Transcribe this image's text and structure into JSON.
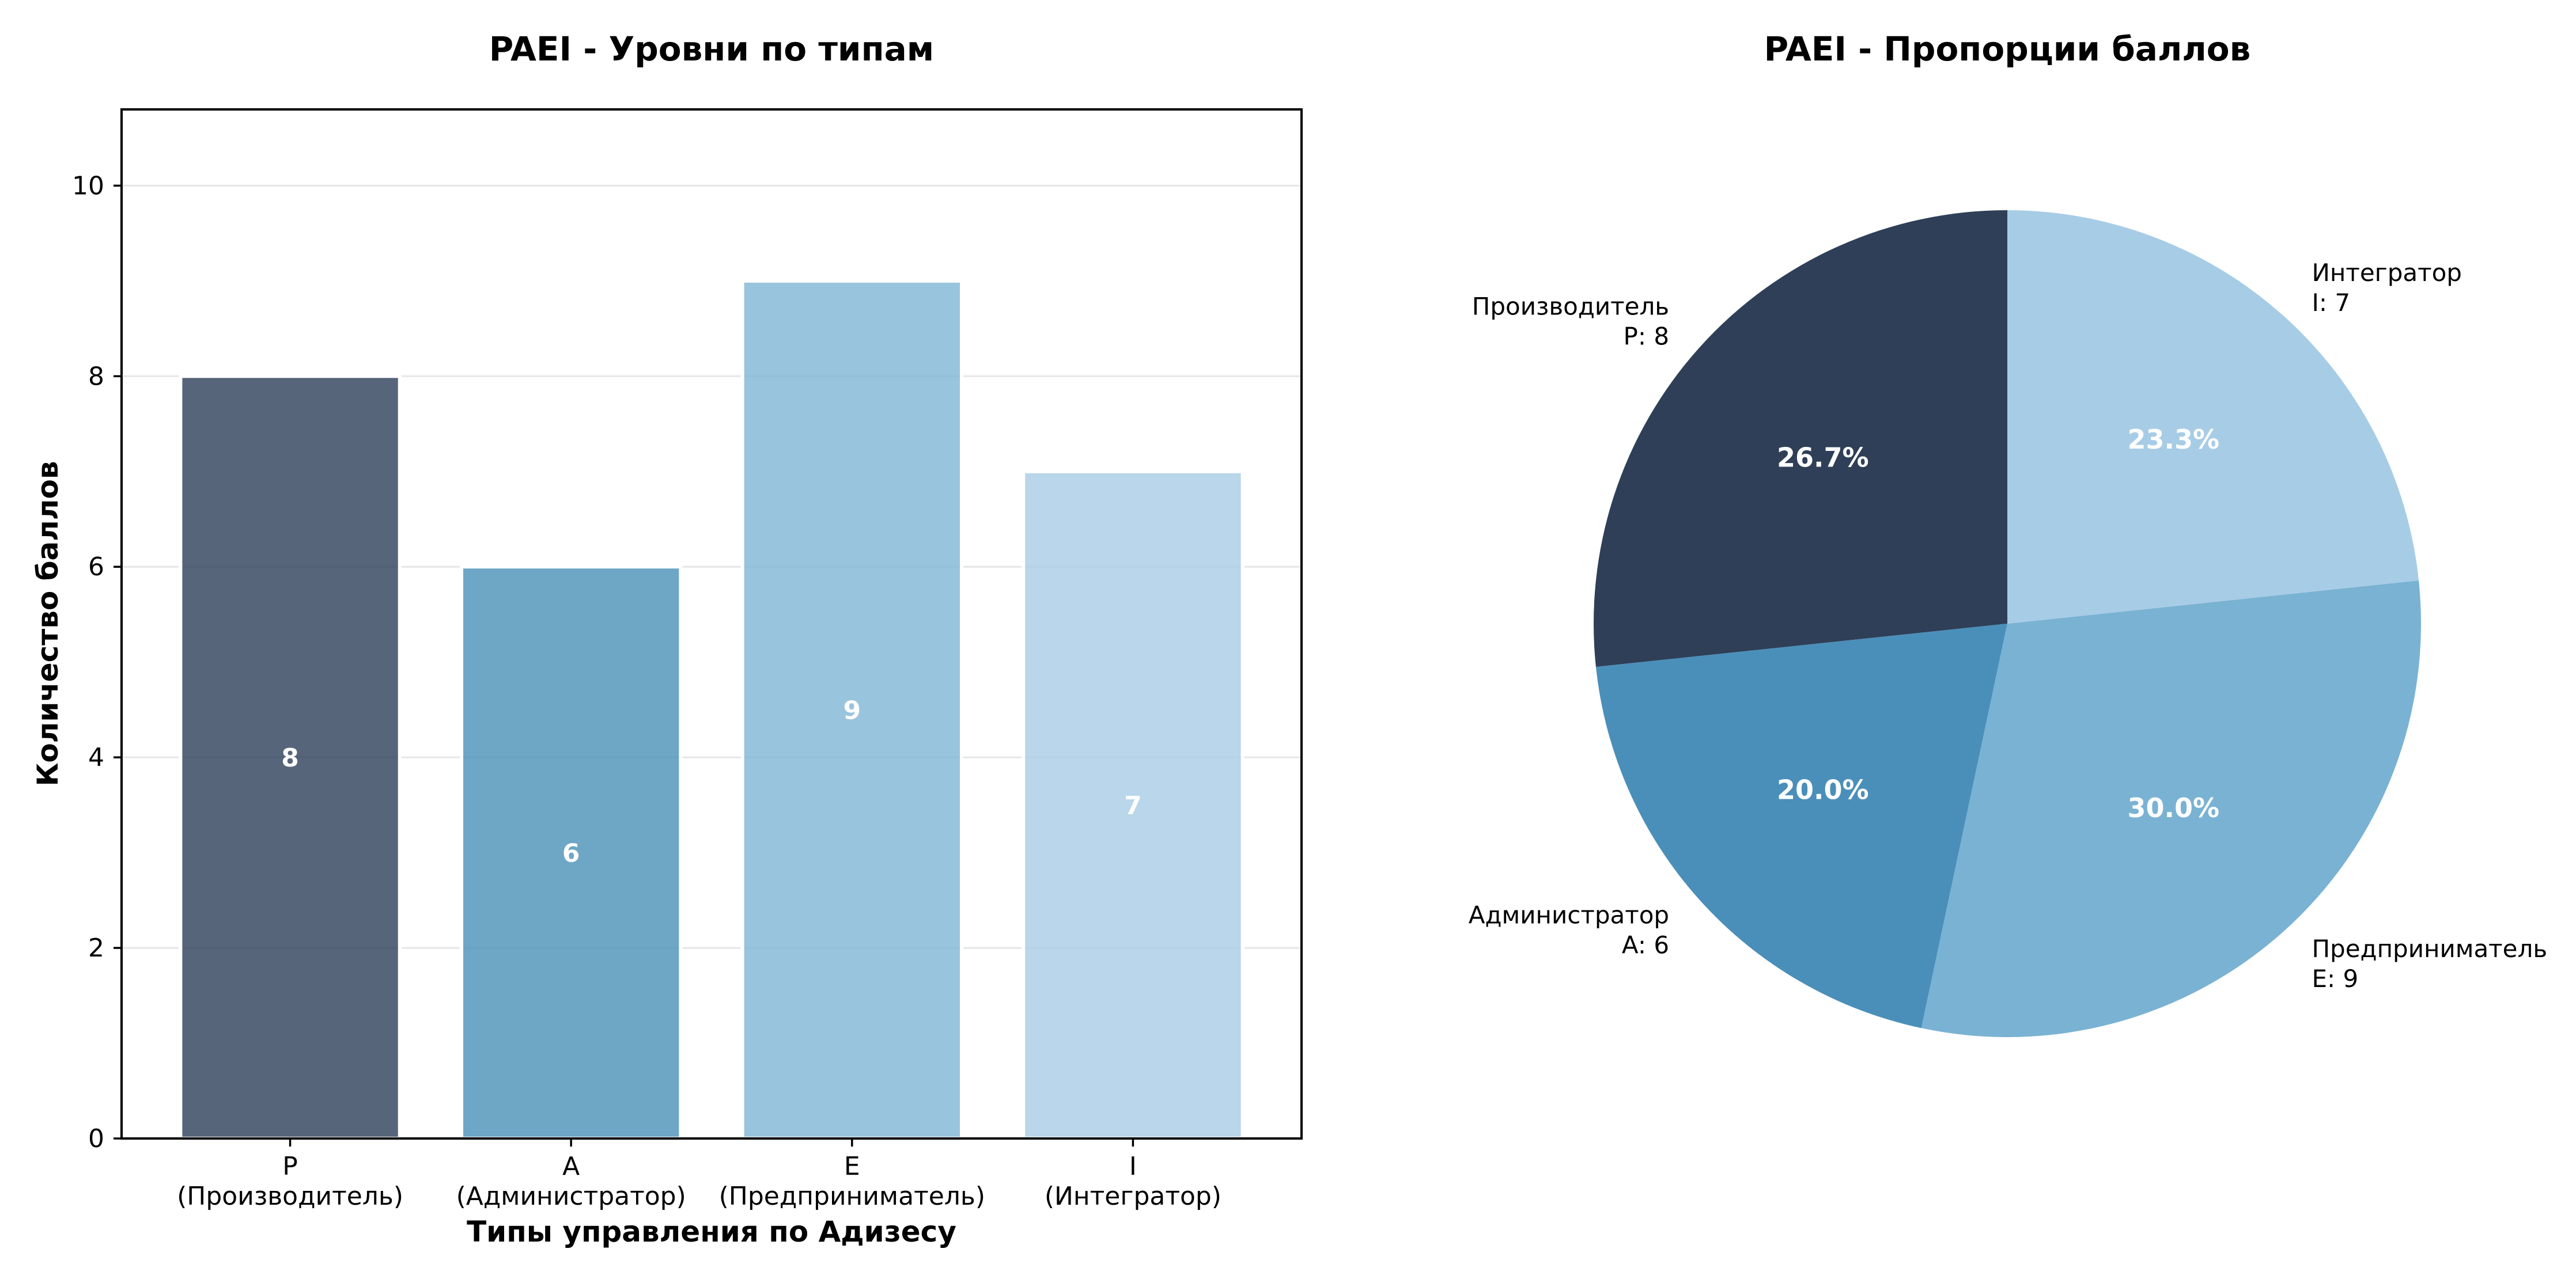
{
  "chart_data": [
    {
      "type": "bar",
      "title": "PAEI - Уровни по типам",
      "xlabel": "Типы управления по Адизесу",
      "ylabel": "Количество баллов",
      "categories": [
        "P",
        "A",
        "E",
        "I"
      ],
      "category_subtitles": [
        "(Производитель)",
        "(Администратор)",
        "(Предприниматель)",
        "(Интегратор)"
      ],
      "values": [
        8,
        6,
        9,
        7
      ],
      "value_labels": [
        "8",
        "6",
        "9",
        "7"
      ],
      "colors": [
        "#2c3e58",
        "#4a90b8",
        "#7fb5d5",
        "#a8cce5"
      ],
      "ylim": [
        0,
        10.8
      ],
      "yticks": [
        0,
        2,
        4,
        6,
        8,
        10
      ],
      "ytick_labels": [
        "0",
        "2",
        "4",
        "6",
        "8",
        "10"
      ],
      "grid": true
    },
    {
      "type": "pie",
      "title": "PAEI - Пропорции баллов",
      "slices": [
        {
          "name": "Производитель",
          "short": "P: 8",
          "value": 8,
          "pct": "26.7%",
          "color": "#2e3f57"
        },
        {
          "name": "Администратор",
          "short": "A: 6",
          "value": 6,
          "pct": "20.0%",
          "color": "#4a8fba"
        },
        {
          "name": "Предприниматель",
          "short": "E: 9",
          "value": 9,
          "pct": "30.0%",
          "color": "#7ab2d3"
        },
        {
          "name": "Интегратор",
          "short": "I: 7",
          "value": 7,
          "pct": "23.3%",
          "color": "#a7cce6"
        }
      ],
      "start_angle_deg": 90,
      "direction": "counterclockwise"
    }
  ]
}
